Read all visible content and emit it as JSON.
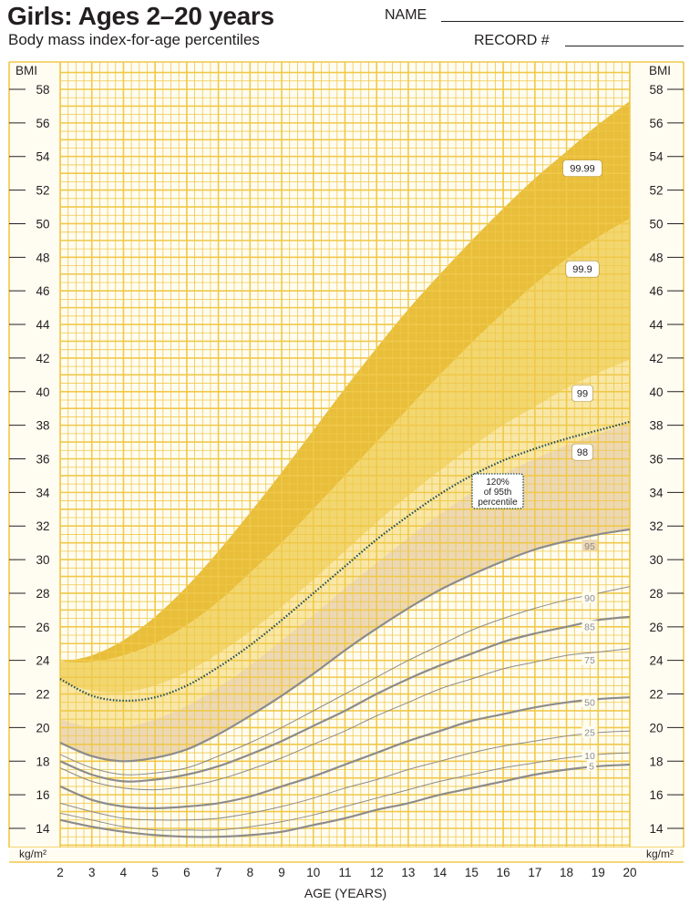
{
  "header": {
    "title": "Girls: Ages 2–20 years",
    "subtitle": "Body mass index-for-age percentiles",
    "name_label": "NAME",
    "record_label": "RECORD #"
  },
  "colors": {
    "grid": "#f0c84a",
    "band_99_99": "#e8be3a",
    "band_99_9": "#f2d770",
    "band_99": "#f8e7a6",
    "band_95": "#ecd8b4",
    "curve": "#8c8c8c",
    "dotted": "#1e4a57"
  },
  "chart_data": {
    "type": "line",
    "title": "Girls: Ages 2–20 years",
    "subtitle": "Body mass index-for-age percentiles",
    "xlabel": "AGE (YEARS)",
    "ylabel": "BMI",
    "unit_label": "kg/m²",
    "xlim": [
      2,
      20
    ],
    "ylim": [
      13,
      59
    ],
    "x_ticks": [
      2,
      3,
      4,
      5,
      6,
      7,
      8,
      9,
      10,
      11,
      12,
      13,
      14,
      15,
      16,
      17,
      18,
      19,
      20
    ],
    "y_ticks": [
      14,
      16,
      18,
      20,
      22,
      24,
      26,
      28,
      30,
      32,
      34,
      36,
      38,
      40,
      42,
      44,
      46,
      48,
      50,
      52,
      54,
      56,
      58
    ],
    "grid": true,
    "x": [
      2,
      3,
      4,
      5,
      6,
      7,
      8,
      9,
      10,
      11,
      12,
      13,
      14,
      15,
      16,
      17,
      18,
      19,
      20
    ],
    "series": [
      {
        "name": "99.99",
        "values": [
          23.9,
          24.3,
          25.2,
          26.6,
          28.4,
          30.5,
          32.8,
          35.2,
          37.7,
          40.2,
          42.6,
          44.9,
          47.0,
          49.0,
          50.9,
          52.7,
          54.3,
          55.9,
          57.3
        ]
      },
      {
        "name": "99.9",
        "values": [
          23.9,
          23.9,
          24.3,
          25.0,
          26.1,
          27.5,
          29.2,
          31.0,
          33.0,
          35.0,
          37.0,
          39.0,
          41.0,
          42.9,
          44.7,
          46.4,
          47.9,
          49.2,
          50.3
        ]
      },
      {
        "name": "99",
        "values": [
          22.7,
          22.2,
          22.1,
          22.5,
          23.3,
          24.4,
          25.7,
          27.2,
          28.8,
          30.5,
          32.2,
          33.8,
          35.3,
          36.7,
          38.0,
          39.1,
          40.2,
          41.1,
          41.9
        ]
      },
      {
        "name": "98",
        "values": [
          20.5,
          20.0,
          20.0,
          20.5,
          21.3,
          22.4,
          23.7,
          25.2,
          26.7,
          28.3,
          29.8,
          31.3,
          32.7,
          34.0,
          35.1,
          36.0,
          36.8,
          37.5,
          38.1
        ]
      },
      {
        "name": "120% of 95th percentile",
        "values": [
          22.9,
          21.9,
          21.6,
          21.8,
          22.5,
          23.6,
          24.9,
          26.4,
          28.0,
          29.6,
          31.2,
          32.6,
          33.9,
          35.0,
          35.9,
          36.6,
          37.2,
          37.7,
          38.2
        ]
      },
      {
        "name": "95",
        "values": [
          19.1,
          18.3,
          18.0,
          18.2,
          18.7,
          19.6,
          20.7,
          21.9,
          23.2,
          24.6,
          25.9,
          27.1,
          28.2,
          29.1,
          29.9,
          30.6,
          31.1,
          31.5,
          31.8
        ]
      },
      {
        "name": "90",
        "values": [
          18.4,
          17.6,
          17.2,
          17.3,
          17.6,
          18.3,
          19.1,
          20.0,
          21.0,
          22.0,
          23.0,
          24.0,
          24.9,
          25.8,
          26.5,
          27.1,
          27.6,
          28.0,
          28.4
        ]
      },
      {
        "name": "85",
        "values": [
          18.0,
          17.2,
          16.8,
          16.9,
          17.2,
          17.7,
          18.4,
          19.2,
          20.1,
          21.0,
          22.0,
          22.9,
          23.7,
          24.4,
          25.1,
          25.6,
          26.0,
          26.4,
          26.6
        ]
      },
      {
        "name": "75",
        "values": [
          17.6,
          16.8,
          16.4,
          16.3,
          16.5,
          16.9,
          17.5,
          18.2,
          19.0,
          19.8,
          20.7,
          21.5,
          22.3,
          22.9,
          23.5,
          23.9,
          24.3,
          24.5,
          24.7
        ]
      },
      {
        "name": "50",
        "values": [
          16.5,
          15.7,
          15.3,
          15.2,
          15.3,
          15.5,
          15.9,
          16.5,
          17.1,
          17.8,
          18.5,
          19.2,
          19.8,
          20.4,
          20.8,
          21.2,
          21.5,
          21.7,
          21.8
        ]
      },
      {
        "name": "25",
        "values": [
          15.5,
          15.0,
          14.6,
          14.5,
          14.5,
          14.6,
          14.9,
          15.3,
          15.8,
          16.4,
          16.9,
          17.5,
          18.0,
          18.5,
          18.9,
          19.2,
          19.5,
          19.7,
          19.8
        ]
      },
      {
        "name": "10",
        "values": [
          14.9,
          14.5,
          14.1,
          13.9,
          13.9,
          13.9,
          14.1,
          14.4,
          14.8,
          15.3,
          15.8,
          16.3,
          16.8,
          17.2,
          17.6,
          17.9,
          18.2,
          18.4,
          18.5
        ]
      },
      {
        "name": "5",
        "values": [
          14.5,
          14.1,
          13.8,
          13.6,
          13.5,
          13.5,
          13.6,
          13.8,
          14.2,
          14.6,
          15.1,
          15.5,
          16.0,
          16.4,
          16.8,
          17.2,
          17.5,
          17.7,
          17.8
        ]
      }
    ],
    "labels": {
      "99.99": "99.99",
      "99.9": "99.9",
      "99": "99",
      "98": "98",
      "95": "95",
      "90": "90",
      "85": "85",
      "75": "75",
      "50": "50",
      "25": "25",
      "10": "10",
      "5": "5",
      "callout": [
        "120%",
        "of 95th",
        "percentile"
      ]
    }
  }
}
